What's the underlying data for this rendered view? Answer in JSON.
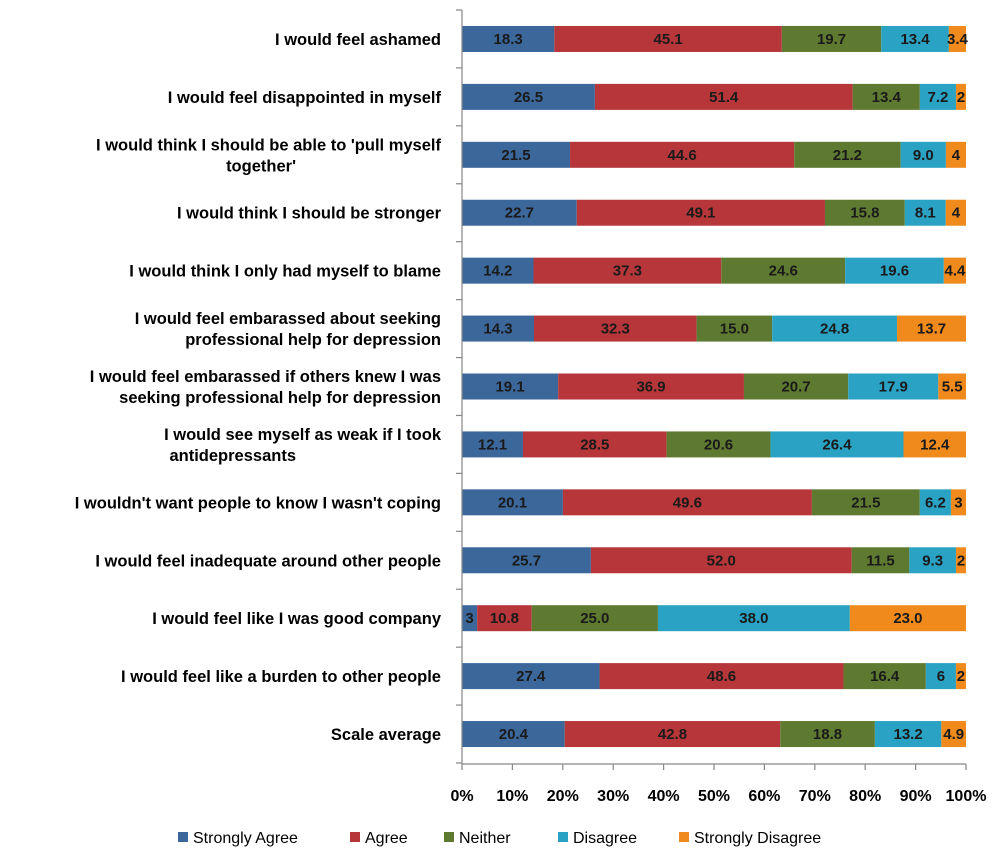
{
  "chart_data": {
    "type": "bar",
    "orientation": "horizontal",
    "stacked": true,
    "percent_stacked": true,
    "categories": [
      [
        "I would feel ashamed"
      ],
      [
        "I would feel disappointed in myself"
      ],
      [
        "I would think I should be able to 'pull myself",
        "together'"
      ],
      [
        "I would think I should be stronger"
      ],
      [
        "I would think I only had myself to blame"
      ],
      [
        "I would feel embarassed about seeking",
        "professional help for depression"
      ],
      [
        "I would feel embarassed if others knew I was",
        "seeking professional help for depression"
      ],
      [
        "I would see myself as weak if I took",
        "antidepressants"
      ],
      [
        "I wouldn't want people to know I wasn't coping"
      ],
      [
        "I would feel inadequate around other people"
      ],
      [
        "I would feel like I was good company"
      ],
      [
        "I would feel like a burden to other people"
      ],
      [
        "Scale average"
      ]
    ],
    "series": [
      {
        "name": "Strongly Agree",
        "color": "#3b679b",
        "values": [
          18.3,
          26.5,
          21.5,
          22.7,
          14.2,
          14.3,
          19.1,
          12.1,
          20.1,
          25.7,
          3,
          27.4,
          20.4
        ],
        "labels": [
          "18.3",
          "26.5",
          "21.5",
          "22.7",
          "14.2",
          "14.3",
          "19.1",
          "12.1",
          "20.1",
          "25.7",
          "3",
          "27.4",
          "20.4"
        ]
      },
      {
        "name": "Agree",
        "color": "#b6363a",
        "values": [
          45.1,
          51.4,
          44.6,
          49.1,
          37.3,
          32.3,
          36.9,
          28.5,
          49.6,
          52.0,
          10.8,
          48.6,
          42.8
        ],
        "labels": [
          "45.1",
          "51.4",
          "44.6",
          "49.1",
          "37.3",
          "32.3",
          "36.9",
          "28.5",
          "49.6",
          "52.0",
          "10.8",
          "48.6",
          "42.8"
        ]
      },
      {
        "name": "Neither",
        "color": "#5e7a30",
        "values": [
          19.7,
          13.4,
          21.2,
          15.8,
          24.6,
          15.0,
          20.7,
          20.6,
          21.5,
          11.5,
          25.0,
          16.4,
          18.8
        ],
        "labels": [
          "19.7",
          "13.4",
          "21.2",
          "15.8",
          "24.6",
          "15.0",
          "20.7",
          "20.6",
          "21.5",
          "11.5",
          "25.0",
          "16.4",
          "18.8"
        ]
      },
      {
        "name": "Disagree",
        "color": "#2aa2c4",
        "values": [
          13.4,
          7.2,
          9.0,
          8.1,
          19.6,
          24.8,
          17.9,
          26.4,
          6.2,
          9.3,
          38.0,
          6,
          13.2
        ],
        "labels": [
          "13.4",
          "7.2",
          "9.0",
          "8.1",
          "19.6",
          "24.8",
          "17.9",
          "26.4",
          "6.2",
          "9.3",
          "38.0",
          "6",
          "13.2"
        ]
      },
      {
        "name": "Strongly Disagree",
        "color": "#f08a1c",
        "values": [
          3.4,
          2,
          4,
          4,
          4.4,
          13.7,
          5.5,
          12.4,
          3,
          2,
          23.0,
          2,
          4.9
        ],
        "labels": [
          "3.4",
          "2",
          "4",
          "4",
          "4.4",
          "13.7",
          "5.5",
          "12.4",
          "3",
          "2",
          "23.0",
          "2",
          "4.9"
        ]
      }
    ],
    "x_ticks": [
      "0%",
      "10%",
      "20%",
      "30%",
      "40%",
      "50%",
      "60%",
      "70%",
      "80%",
      "90%",
      "100%"
    ],
    "xlim": [
      0,
      100
    ],
    "grid": false,
    "legend_position": "bottom"
  }
}
